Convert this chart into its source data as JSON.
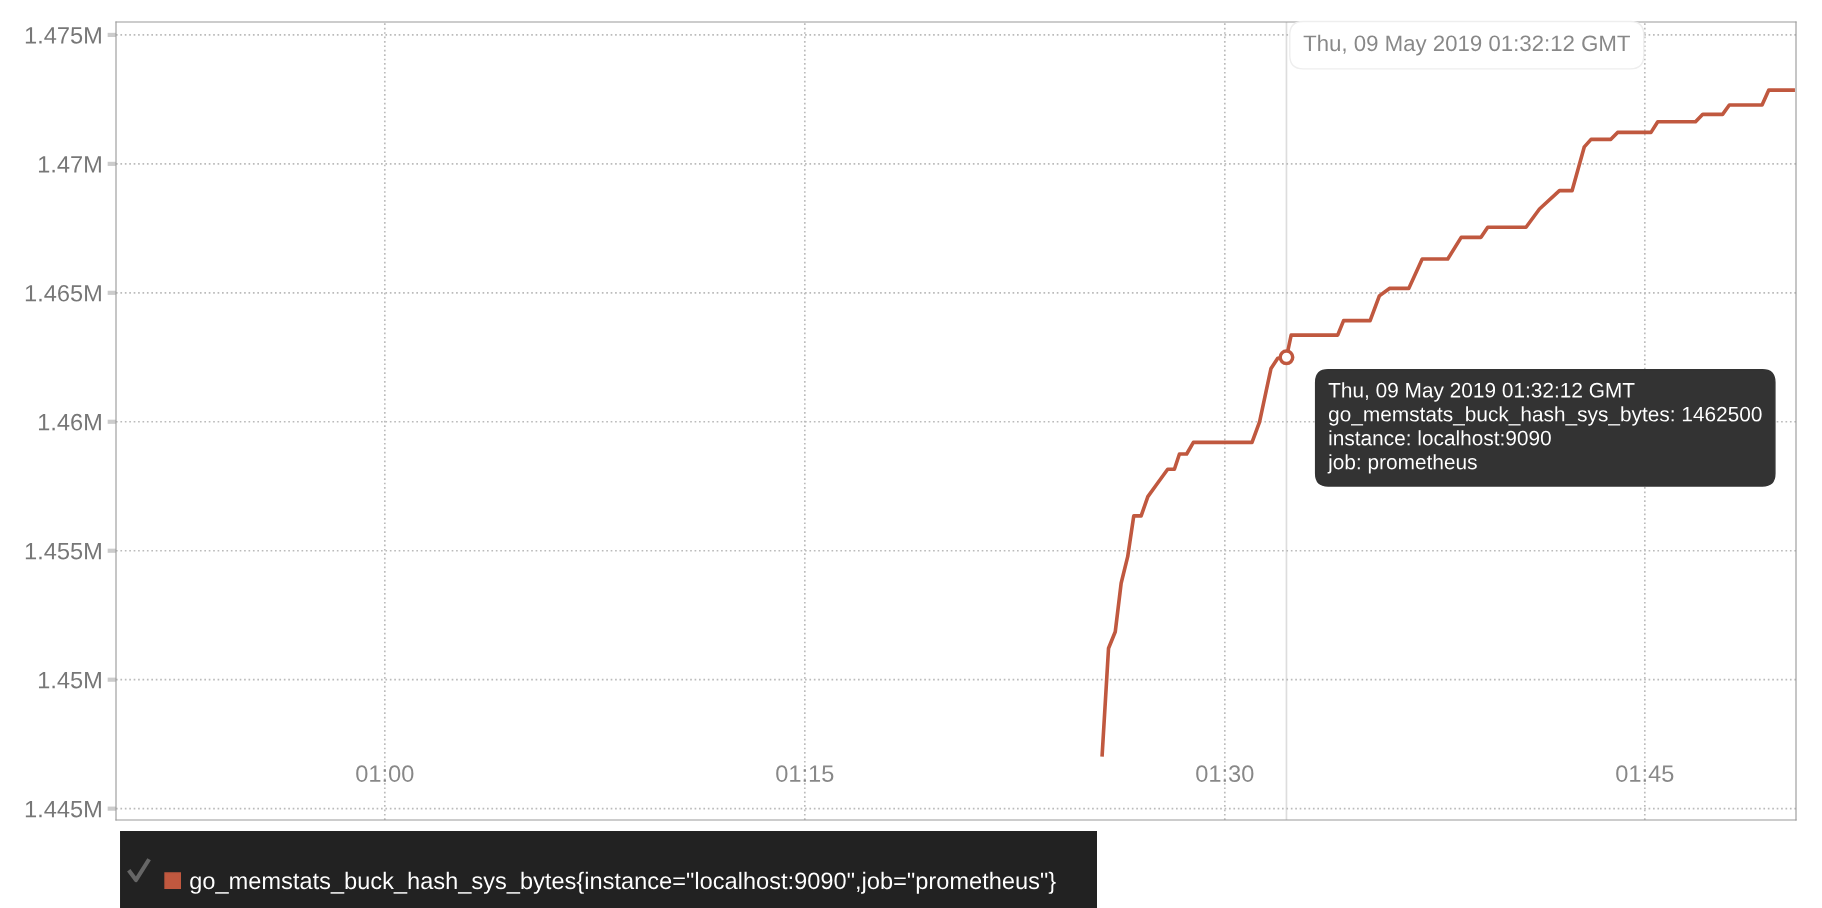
{
  "chart_data": {
    "type": "line",
    "x": [
      1.427,
      1.4308,
      1.4348,
      1.4383,
      1.4422,
      1.4458,
      1.4502,
      1.4542,
      1.4592,
      1.466,
      1.47,
      1.473,
      1.4773,
      1.4813,
      1.5162,
      1.5207,
      1.5275,
      1.5315,
      1.5367,
      1.5395,
      1.5672,
      1.5707,
      1.5865,
      1.592,
      1.598,
      1.6095,
      1.6175,
      1.6327,
      1.6407,
      1.6525,
      1.6565,
      1.6793,
      1.6873,
      1.6992,
      1.7067,
      1.714,
      1.718,
      1.7298,
      1.7338,
      1.7537,
      1.7577,
      1.7802,
      1.7845,
      1.7963,
      1.8003,
      1.8198,
      1.8238,
      1.8383
    ],
    "series": [
      {
        "name": "go_memstats_buck_hash_sys_bytes{instance=\"localhost:9090\",job=\"prometheus\"}",
        "color": "#c0583f",
        "values": [
          1447090,
          1451220,
          1451860,
          1453740,
          1454770,
          1456350,
          1456350,
          1457100,
          1457550,
          1458160,
          1458160,
          1458750,
          1458750,
          1459200,
          1459200,
          1460000,
          1462070,
          1462460,
          1462500,
          1463360,
          1463360,
          1463920,
          1463920,
          1464880,
          1465170,
          1465170,
          1466310,
          1466310,
          1467150,
          1467150,
          1467540,
          1467540,
          1468250,
          1468960,
          1468960,
          1470660,
          1470950,
          1470950,
          1471220,
          1471220,
          1471630,
          1471630,
          1471920,
          1471920,
          1472280,
          1472280,
          1472860,
          1472860
        ]
      }
    ],
    "xlim": [
      0.84,
      1.84
    ],
    "xticks": [
      {
        "value": 1.0,
        "label": "01:00"
      },
      {
        "value": 1.25,
        "label": "01:15"
      },
      {
        "value": 1.5,
        "label": "01:30"
      },
      {
        "value": 1.75,
        "label": "01:45"
      }
    ],
    "ylim": [
      1444560,
      1475500
    ],
    "yticks": [
      {
        "value": 1445000,
        "label": "1.445M"
      },
      {
        "value": 1450000,
        "label": "1.45M"
      },
      {
        "value": 1455000,
        "label": "1.455M"
      },
      {
        "value": 1460000,
        "label": "1.46M"
      },
      {
        "value": 1465000,
        "label": "1.465M"
      },
      {
        "value": 1470000,
        "label": "1.47M"
      },
      {
        "value": 1475000,
        "label": "1.475M"
      }
    ],
    "grid": true,
    "legend": "bottom left",
    "marker": "none",
    "line_style": "solid",
    "ref_lines": [
      {
        "axis": "x",
        "value": 1.5367,
        "color": "#dddddd",
        "line_style": "solid"
      }
    ],
    "annotations": [
      {
        "text": "Thu, 09 May 2019 01:32:12 GMT\ngo_memstats_buck_hash_sys_bytes: 1462500\ninstance: localhost:9090\njob: prometheus",
        "x": 1.5367,
        "y": 1462500
      },
      {
        "text": "Thu, 09 May 2019 01:32:12 GMT",
        "x": 1.5367,
        "y": 1474600
      }
    ]
  }
}
